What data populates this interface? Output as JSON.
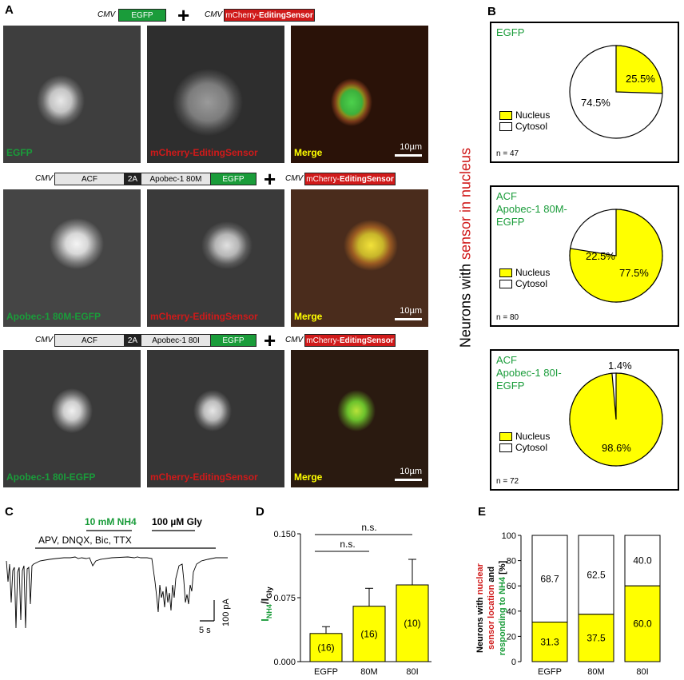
{
  "panels": {
    "a": "A",
    "b": "B",
    "c": "C",
    "d": "D",
    "e": "E"
  },
  "constructs": {
    "cmv": "CMV",
    "egfp": "EGFP",
    "mcherry_prefix": "mCherry-",
    "mcherry_bold": "EditingSensor",
    "acf": "ACF",
    "p2a": "2A",
    "apobec_80m": "Apobec-1 80M",
    "apobec_80i": "Apobec-1 80I",
    "plus": "+"
  },
  "micro_labels": {
    "row1": [
      "EGFP",
      "mCherry-EditingSensor",
      "Merge"
    ],
    "row2": [
      "Apobec-1 80M-EGFP",
      "mCherry-EditingSensor",
      "Merge"
    ],
    "row3": [
      "Apobec-1 80I-EGFP",
      "mCherry-EditingSensor",
      "Merge"
    ],
    "scale": "10µm"
  },
  "colors": {
    "green": "#1a9c3a",
    "red": "#d01a1a",
    "yellow": "#ffff00"
  },
  "panel_b": {
    "ylabel_black": "Neurons with ",
    "ylabel_red": "sensor in nucleus",
    "legend": [
      "Nucleus",
      "Cytosol"
    ],
    "pies": [
      {
        "title": [
          "EGFP"
        ],
        "nucleus": 25.5,
        "cytosol": 74.5,
        "nucleus_label": "25.5%",
        "cytosol_label": "74.5%",
        "n": "n = 47"
      },
      {
        "title": [
          "ACF",
          "Apobec-1 80M-",
          "EGFP"
        ],
        "nucleus": 77.5,
        "cytosol": 22.5,
        "nucleus_label": "77.5%",
        "cytosol_label": "22.5%",
        "n": "n = 80"
      },
      {
        "title": [
          "ACF",
          "Apobec-1 80I-",
          "EGFP"
        ],
        "nucleus": 98.6,
        "cytosol": 1.4,
        "nucleus_label": "98.6%",
        "cytosol_label": "1.4%",
        "n": "n = 72"
      }
    ]
  },
  "panel_c": {
    "nh4": "10 mM NH4",
    "gly": "100 µM Gly",
    "drugs": "APV, DNQX, Bic, TTX",
    "time_scale": "5 s",
    "current_scale": "100 pA"
  },
  "chart_data": [
    {
      "type": "bar",
      "categories": [
        "EGFP",
        "80M",
        "80I"
      ],
      "values": [
        0.033,
        0.065,
        0.09
      ],
      "errors": [
        0.008,
        0.021,
        0.03
      ],
      "bar_labels": [
        "(16)",
        "(16)",
        "(10)"
      ],
      "ylim": [
        0,
        0.15
      ],
      "yticks": [
        "0.000",
        "0.075",
        "0.150"
      ],
      "ylabel_parts": [
        "I",
        "NH4",
        "/I",
        "Gly"
      ],
      "significance": [
        "n.s.",
        "n.s."
      ]
    },
    {
      "type": "bar",
      "stacked": true,
      "categories": [
        "EGFP",
        "80M",
        "80I"
      ],
      "series": [
        {
          "values": [
            31.3,
            37.5,
            60.0
          ]
        },
        {
          "values": [
            68.7,
            62.5,
            40.0
          ]
        }
      ],
      "labels_bottom": [
        "31.3",
        "37.5",
        "60.0"
      ],
      "labels_top": [
        "68.7",
        "62.5",
        "40.0"
      ],
      "ylim": [
        0,
        100
      ],
      "yticks": [
        "0",
        "20",
        "40",
        "60",
        "80",
        "100"
      ],
      "ylabel": [
        "Neurons with ",
        "nuclear",
        "sensor location",
        " and",
        "responding to NH4",
        " [%]"
      ]
    }
  ]
}
